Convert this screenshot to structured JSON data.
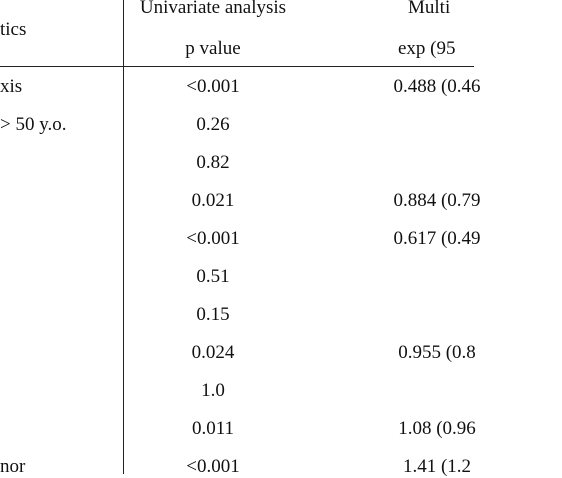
{
  "header": {
    "col1": "tics",
    "col2_group": "Univariate analysis",
    "col2_sub": "p value",
    "col3_group": "Multi",
    "col3_sub": "exp (95"
  },
  "rows": [
    {
      "label": "xis",
      "p_value": "<0.001",
      "exp": "0.488 (0.46"
    },
    {
      "label": "> 50 y.o.",
      "p_value": "0.26",
      "exp": ""
    },
    {
      "label": "",
      "p_value": "0.82",
      "exp": ""
    },
    {
      "label": "",
      "p_value": "0.021",
      "exp": "0.884 (0.79"
    },
    {
      "label": "",
      "p_value": "<0.001",
      "exp": "0.617 (0.49"
    },
    {
      "label": "",
      "p_value": "0.51",
      "exp": ""
    },
    {
      "label": "",
      "p_value": "0.15",
      "exp": ""
    },
    {
      "label": "",
      "p_value": "0.024",
      "exp": "0.955 (0.8"
    },
    {
      "label": "",
      "p_value": "1.0",
      "exp": ""
    },
    {
      "label": "",
      "p_value": "0.011",
      "exp": "1.08 (0.96"
    },
    {
      "label": "nor",
      "p_value": "<0.001",
      "exp": "1.41 (1.2"
    }
  ]
}
